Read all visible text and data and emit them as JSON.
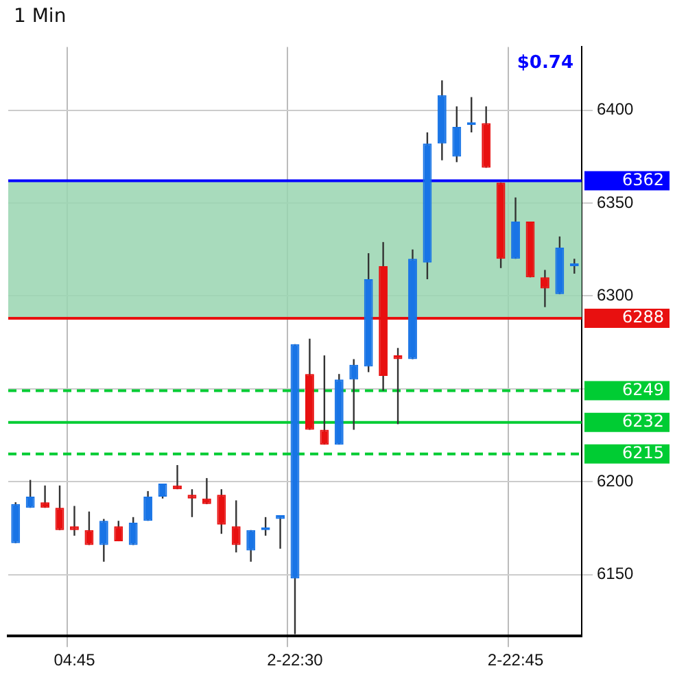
{
  "chart_data": {
    "type": "candlestick",
    "title": "1 Min",
    "categories": [
      null,
      null,
      null,
      null,
      "04:45",
      null,
      null,
      null,
      null,
      null,
      null,
      null,
      null,
      null,
      null,
      null,
      null,
      null,
      null,
      "2-22:30",
      null,
      null,
      null,
      null,
      null,
      null,
      null,
      null,
      null,
      null,
      null,
      null,
      null,
      null,
      "2-22:45",
      null,
      null,
      null,
      null
    ],
    "ohlc": [
      [
        6167,
        6189,
        6167,
        6188
      ],
      [
        6186,
        6201,
        6186,
        6192
      ],
      [
        6189,
        6198,
        6186,
        6186
      ],
      [
        6186,
        6198,
        6174,
        6174
      ],
      [
        6176,
        6187,
        6171,
        6174
      ],
      [
        6174,
        6184,
        6166,
        6166
      ],
      [
        6166,
        6180,
        6157,
        6179
      ],
      [
        6176,
        6179,
        6168,
        6168
      ],
      [
        6166,
        6181,
        6166,
        6178
      ],
      [
        6179,
        6195,
        6179,
        6192
      ],
      [
        6192,
        6199,
        6191,
        6199
      ],
      [
        6198,
        6209,
        6196,
        6196
      ],
      [
        6193,
        6196,
        6181,
        6191
      ],
      [
        6191,
        6202,
        6188,
        6188
      ],
      [
        6193,
        6196,
        6172,
        6177
      ],
      [
        6176,
        6190,
        6162,
        6166
      ],
      [
        6163,
        6174,
        6157,
        6174
      ],
      [
        6174,
        6181,
        6171,
        6175
      ],
      [
        6180,
        6182,
        6164,
        6182
      ],
      [
        6148,
        6274,
        6118,
        6274
      ],
      [
        6258,
        6277,
        6228,
        6228
      ],
      [
        6228,
        6268,
        6220,
        6220
      ],
      [
        6220,
        6258,
        6220,
        6255
      ],
      [
        6255,
        6266,
        6228,
        6263
      ],
      [
        6262,
        6323,
        6259,
        6309
      ],
      [
        6316,
        6329,
        6249,
        6257
      ],
      [
        6268,
        6272,
        6231,
        6266
      ],
      [
        6266,
        6325,
        6266,
        6320
      ],
      [
        6318,
        6388,
        6309,
        6382
      ],
      [
        6382,
        6416,
        6373,
        6408
      ],
      [
        6375,
        6402,
        6372,
        6391
      ],
      [
        6392,
        6407,
        6388,
        6393
      ],
      [
        6393,
        6402,
        6369,
        6369
      ],
      [
        6361,
        6361,
        6315,
        6320
      ],
      [
        6320,
        6353,
        6320,
        6340
      ],
      [
        6340,
        6340,
        6310,
        6310
      ],
      [
        6310,
        6314,
        6294,
        6304
      ],
      [
        6301,
        6332,
        6301,
        6326
      ],
      [
        6316,
        6320,
        6312,
        6317
      ]
    ],
    "colors": [
      "#1874e6",
      "#1874e6",
      "#e81010",
      "#e81010",
      "#e81010",
      "#e81010",
      "#1874e6",
      "#e81010",
      "#1874e6",
      "#1874e6",
      "#1874e6",
      "#e81010",
      "#e81010",
      "#e81010",
      "#e81010",
      "#e81010",
      "#1874e6",
      "#1874e6",
      "#1874e6",
      "#1874e6",
      "#e81010",
      "#e81010",
      "#1874e6",
      "#1874e6",
      "#1874e6",
      "#e81010",
      "#e81010",
      "#1874e6",
      "#1874e6",
      "#1874e6",
      "#1874e6",
      "#1874e6",
      "#e81010",
      "#e81010",
      "#1874e6",
      "#e81010",
      "#e81010",
      "#1874e6",
      "#1874e6"
    ],
    "ylim": [
      6117,
      6434
    ],
    "yticks": [
      6150,
      6200,
      {
        "value": 6250,
        "label": null
      },
      6300,
      6350,
      6400
    ],
    "ref_lines": [
      {
        "axis": "y",
        "value": 6362,
        "label": "6362",
        "color": "#0000ff",
        "line_style": "solid"
      },
      {
        "axis": "y",
        "value": 6288,
        "label": "6288",
        "color": "#e81010",
        "line_style": "solid"
      },
      {
        "axis": "y",
        "value": 6249,
        "label": "6249",
        "color": "#00cc33",
        "line_style": "dashed"
      },
      {
        "axis": "y",
        "value": 6232,
        "label": "6232",
        "color": "#00cc33",
        "line_style": "solid"
      },
      {
        "axis": "y",
        "value": 6215,
        "label": "6215",
        "color": "#00cc33",
        "line_style": "dashed"
      }
    ],
    "bands": [
      {
        "axis": "y",
        "from": 6288,
        "to": 6362,
        "color": "#99d5b0"
      }
    ],
    "annotations": [
      "$0.74"
    ],
    "grid": true,
    "legend": false
  }
}
